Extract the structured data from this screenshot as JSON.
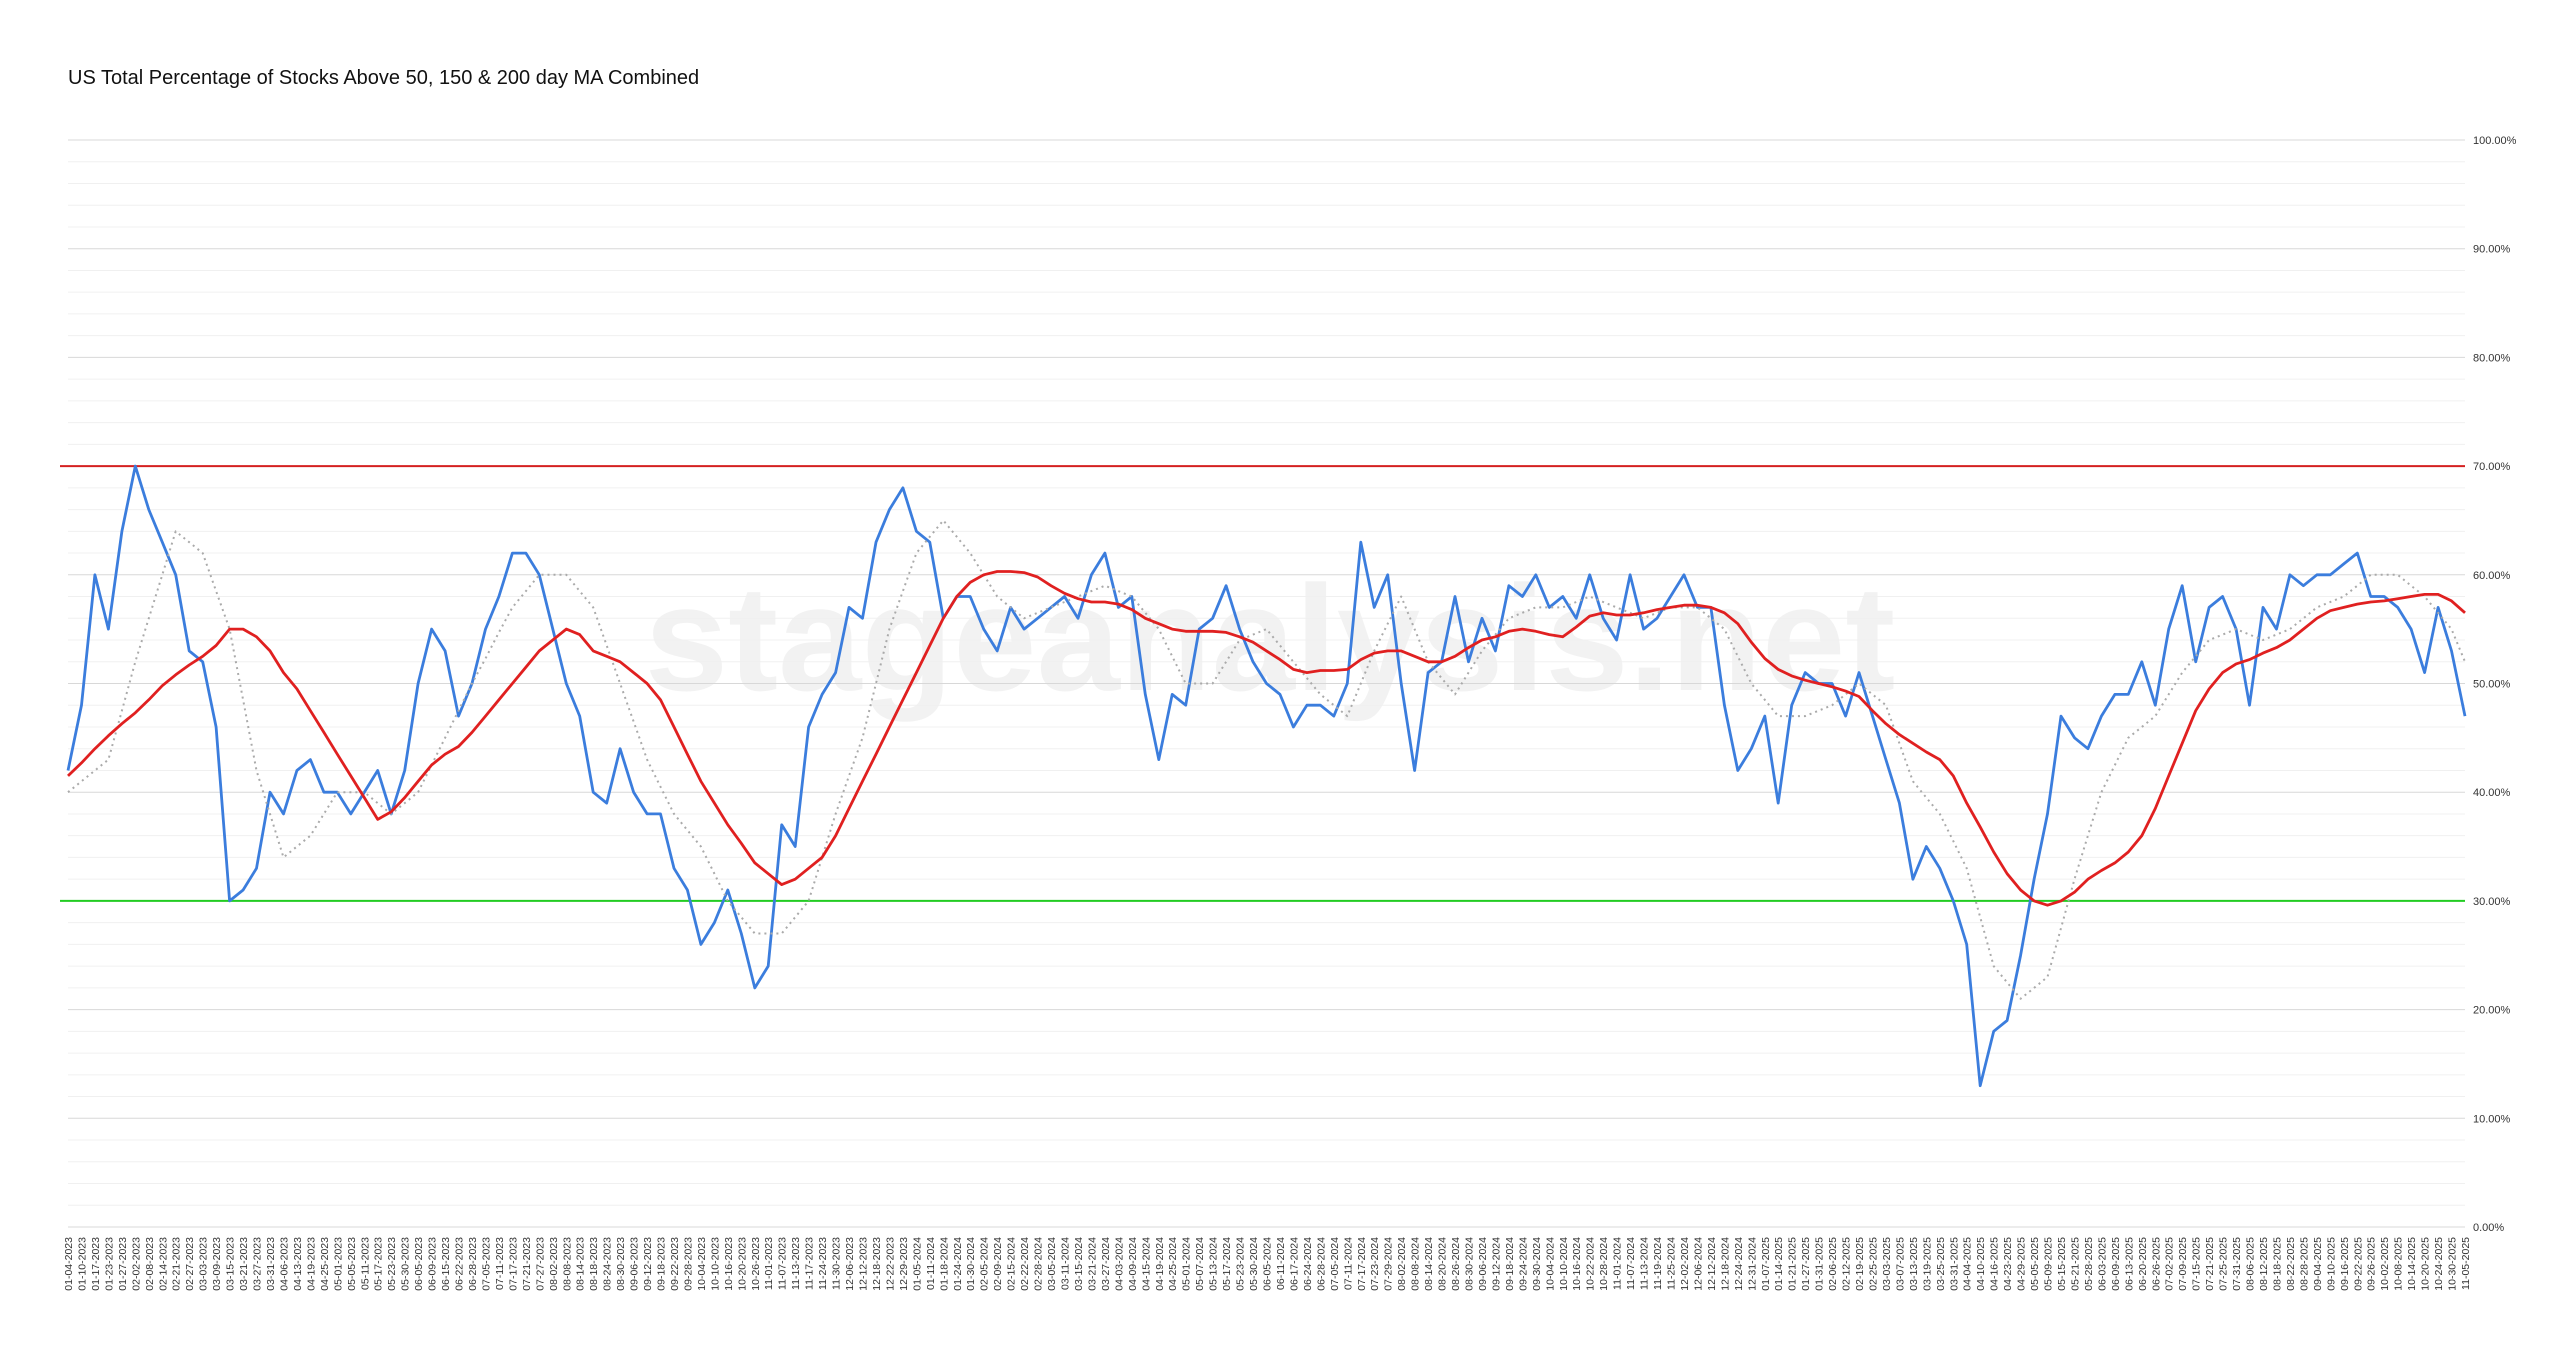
{
  "chart_data": {
    "type": "line",
    "title": "US Total Percentage of Stocks Above 50, 150 & 200 day MA Combined",
    "watermark": "stageanalysis.net",
    "categories": [
      "01-04-2023",
      "01-10-2023",
      "01-17-2023",
      "01-23-2023",
      "01-27-2023",
      "02-02-2023",
      "02-08-2023",
      "02-14-2023",
      "02-21-2023",
      "02-27-2023",
      "03-03-2023",
      "03-09-2023",
      "03-15-2023",
      "03-21-2023",
      "03-27-2023",
      "03-31-2023",
      "04-06-2023",
      "04-13-2023",
      "04-19-2023",
      "04-25-2023",
      "05-01-2023",
      "05-05-2023",
      "05-11-2023",
      "05-17-2023",
      "05-23-2023",
      "05-30-2023",
      "06-05-2023",
      "06-09-2023",
      "06-15-2023",
      "06-22-2023",
      "06-28-2023",
      "07-05-2023",
      "07-11-2023",
      "07-17-2023",
      "07-21-2023",
      "07-27-2023",
      "08-02-2023",
      "08-08-2023",
      "08-14-2023",
      "08-18-2023",
      "08-24-2023",
      "08-30-2023",
      "09-06-2023",
      "09-12-2023",
      "09-18-2023",
      "09-22-2023",
      "09-28-2023",
      "10-04-2023",
      "10-10-2023",
      "10-16-2023",
      "10-20-2023",
      "10-26-2023",
      "11-01-2023",
      "11-07-2023",
      "11-13-2023",
      "11-17-2023",
      "11-24-2023",
      "11-30-2023",
      "12-06-2023",
      "12-12-2023",
      "12-18-2023",
      "12-22-2023",
      "12-29-2023",
      "01-05-2024",
      "01-11-2024",
      "01-18-2024",
      "01-24-2024",
      "01-30-2024",
      "02-05-2024",
      "02-09-2024",
      "02-15-2024",
      "02-22-2024",
      "02-28-2024",
      "03-05-2024",
      "03-11-2024",
      "03-15-2024",
      "03-21-2024",
      "03-27-2024",
      "04-03-2024",
      "04-09-2024",
      "04-15-2024",
      "04-19-2024",
      "04-25-2024",
      "05-01-2024",
      "05-07-2024",
      "05-13-2024",
      "05-17-2024",
      "05-23-2024",
      "05-30-2024",
      "06-05-2024",
      "06-11-2024",
      "06-17-2024",
      "06-24-2024",
      "06-28-2024",
      "07-05-2024",
      "07-11-2024",
      "07-17-2024",
      "07-23-2024",
      "07-29-2024",
      "08-02-2024",
      "08-08-2024",
      "08-14-2024",
      "08-20-2024",
      "08-26-2024",
      "08-30-2024",
      "09-06-2024",
      "09-12-2024",
      "09-18-2024",
      "09-24-2024",
      "09-30-2024",
      "10-04-2024",
      "10-10-2024",
      "10-16-2024",
      "10-22-2024",
      "10-28-2024",
      "11-01-2024",
      "11-07-2024",
      "11-13-2024",
      "11-19-2024",
      "11-25-2024",
      "12-02-2024",
      "12-06-2024",
      "12-12-2024",
      "12-18-2024",
      "12-24-2024",
      "12-31-2024",
      "01-07-2025",
      "01-14-2025",
      "01-21-2025",
      "01-27-2025",
      "01-31-2025",
      "02-06-2025",
      "02-12-2025",
      "02-19-2025",
      "02-25-2025",
      "03-03-2025",
      "03-07-2025",
      "03-13-2025",
      "03-19-2025",
      "03-25-2025",
      "03-31-2025",
      "04-04-2025",
      "04-10-2025",
      "04-16-2025",
      "04-23-2025",
      "04-29-2025",
      "05-05-2025",
      "05-09-2025",
      "05-15-2025",
      "05-21-2025",
      "05-28-2025",
      "06-03-2025",
      "06-09-2025",
      "06-13-2025",
      "06-20-2025",
      "06-26-2025",
      "07-02-2025",
      "07-09-2025",
      "07-15-2025",
      "07-21-2025",
      "07-25-2025",
      "07-31-2025",
      "08-06-2025",
      "08-12-2025",
      "08-18-2025",
      "08-22-2025",
      "08-28-2025",
      "09-04-2025",
      "09-10-2025",
      "09-16-2025",
      "09-22-2025",
      "09-26-2025",
      "10-02-2025",
      "10-08-2025",
      "10-14-2025",
      "10-20-2025",
      "10-24-2025",
      "10-30-2025",
      "11-05-2025"
    ],
    "series": [
      {
        "color": "#3b7ddd",
        "style": "solid",
        "values": [
          42,
          48,
          60,
          55,
          64,
          70,
          66,
          63,
          60,
          53,
          52,
          46,
          30,
          31,
          33,
          40,
          38,
          42,
          43,
          40,
          40,
          38,
          40,
          42,
          38,
          42,
          50,
          55,
          53,
          47,
          50,
          55,
          58,
          62,
          62,
          60,
          55,
          50,
          47,
          40,
          39,
          44,
          40,
          38,
          38,
          33,
          31,
          26,
          28,
          31,
          27,
          22,
          24,
          37,
          35,
          46,
          49,
          51,
          57,
          56,
          63,
          66,
          68,
          64,
          63,
          56,
          58,
          58,
          55,
          53,
          57,
          55,
          56,
          57,
          58,
          56,
          60,
          62,
          57,
          58,
          49,
          43,
          49,
          48,
          55,
          56,
          59,
          55,
          52,
          50,
          49,
          46,
          48,
          48,
          47,
          50,
          63,
          57,
          60,
          50,
          42,
          51,
          52,
          58,
          52,
          56,
          53,
          59,
          58,
          60,
          57,
          58,
          56,
          60,
          56,
          54,
          60,
          55,
          56,
          58,
          60,
          57,
          57,
          48,
          42,
          44,
          47,
          39,
          48,
          51,
          50,
          50,
          47,
          51,
          47,
          43,
          39,
          32,
          35,
          33,
          30,
          26,
          13,
          18,
          19,
          25,
          32,
          38,
          47,
          45,
          44,
          47,
          49,
          49,
          52,
          48,
          55,
          59,
          52,
          57,
          58,
          55,
          48,
          57,
          55,
          60,
          59,
          60,
          60,
          61,
          62,
          58,
          58,
          57,
          55,
          51,
          57,
          53,
          47
        ]
      },
      {
        "color": "#aaaaaa",
        "style": "dotted",
        "values": [
          40,
          41,
          42,
          43,
          47.5,
          52,
          56,
          60,
          64,
          63,
          62,
          58.5,
          55,
          48.5,
          42,
          38,
          34,
          35,
          36,
          38,
          40,
          40,
          40,
          39,
          38,
          39,
          40,
          42.5,
          45,
          47.5,
          50,
          52.3,
          54.7,
          57,
          58.5,
          60,
          60,
          60,
          58.5,
          57,
          53.5,
          50,
          46.5,
          43,
          40.5,
          38,
          36.5,
          35,
          32.5,
          30,
          28.5,
          27,
          27,
          27,
          28.5,
          30,
          34,
          38,
          41.5,
          45,
          50,
          55,
          58.5,
          62,
          63.5,
          65,
          63.5,
          62,
          60,
          58,
          57,
          56,
          56.5,
          57,
          57.5,
          58,
          58.5,
          59,
          58.5,
          58,
          56.5,
          55,
          52.5,
          50,
          50,
          50,
          52,
          54,
          54.5,
          55,
          53.5,
          52,
          50.5,
          49,
          48,
          47,
          50,
          53,
          55.5,
          58,
          55,
          52,
          50.5,
          49,
          51,
          53,
          54.5,
          56,
          56.5,
          57,
          57,
          57,
          57.5,
          58,
          57.5,
          57,
          56.5,
          56,
          56.5,
          57,
          57,
          57,
          56,
          55,
          52.5,
          50,
          48.5,
          47,
          47,
          47,
          47.5,
          48,
          49,
          50,
          49,
          48,
          44.5,
          41,
          39.5,
          38,
          35.5,
          33,
          28.5,
          24,
          22.5,
          21,
          22,
          23,
          27.5,
          32,
          36,
          40,
          42.5,
          45,
          46,
          47,
          49,
          51,
          52.5,
          54,
          54.5,
          55,
          54.5,
          54,
          54.5,
          55,
          56,
          57,
          57.5,
          58,
          59,
          60,
          60,
          60,
          59,
          58,
          56.5,
          55,
          52
        ]
      },
      {
        "color": "#e02020",
        "style": "solid",
        "values": [
          41.5,
          42.7,
          44,
          45.2,
          46.3,
          47.3,
          48.5,
          49.8,
          50.8,
          51.7,
          52.5,
          53.5,
          55,
          55,
          54.3,
          53,
          51,
          49.5,
          47.5,
          45.5,
          43.5,
          41.5,
          39.5,
          37.5,
          38.2,
          39.5,
          41,
          42.5,
          43.5,
          44.2,
          45.5,
          47,
          48.5,
          50,
          51.5,
          53,
          54,
          55,
          54.5,
          53,
          52.5,
          52,
          51,
          50,
          48.5,
          46,
          43.5,
          41,
          39,
          37,
          35.3,
          33.5,
          32.5,
          31.5,
          32,
          33,
          34,
          36,
          38.5,
          41,
          43.5,
          46,
          48.5,
          51,
          53.5,
          56,
          58,
          59.3,
          60,
          60.3,
          60.3,
          60.2,
          59.8,
          59,
          58.3,
          57.8,
          57.5,
          57.5,
          57.3,
          56.8,
          56,
          55.5,
          55,
          54.8,
          54.8,
          54.8,
          54.7,
          54.3,
          53.8,
          53,
          52.2,
          51.3,
          51,
          51.2,
          51.2,
          51.3,
          52.2,
          52.8,
          53,
          53,
          52.5,
          52,
          52,
          52.5,
          53.3,
          54,
          54.3,
          54.8,
          55,
          54.8,
          54.5,
          54.3,
          55.2,
          56.2,
          56.5,
          56.3,
          56.3,
          56.5,
          56.8,
          57,
          57.2,
          57.2,
          57,
          56.5,
          55.5,
          53.8,
          52.3,
          51.3,
          50.7,
          50.3,
          50,
          49.7,
          49.3,
          48.8,
          47.5,
          46.3,
          45.3,
          44.5,
          43.7,
          43,
          41.5,
          39,
          36.8,
          34.5,
          32.5,
          31,
          30,
          29.6,
          30,
          30.8,
          32,
          32.8,
          33.5,
          34.5,
          36,
          38.5,
          41.5,
          44.5,
          47.5,
          49.5,
          51,
          51.8,
          52.2,
          52.8,
          53.3,
          54,
          55,
          56,
          56.7,
          57,
          57.3,
          57.5,
          57.6,
          57.8,
          58,
          58.2,
          58.2,
          57.6,
          56.5
        ]
      }
    ],
    "reference_lines": [
      {
        "value": 70,
        "color": "#d42020"
      },
      {
        "value": 30,
        "color": "#22cc22"
      }
    ],
    "ylim": [
      0,
      100
    ],
    "yticks": [
      {
        "value": 0,
        "label": "0.00%"
      },
      {
        "value": 10,
        "label": "10.00%"
      },
      {
        "value": 20,
        "label": "20.00%"
      },
      {
        "value": 30,
        "label": "30.00%"
      },
      {
        "value": 40,
        "label": "40.00%"
      },
      {
        "value": 50,
        "label": "50.00%"
      },
      {
        "value": 60,
        "label": "60.00%"
      },
      {
        "value": 70,
        "label": "70.00%"
      },
      {
        "value": 80,
        "label": "80.00%"
      },
      {
        "value": 90,
        "label": "90.00%"
      },
      {
        "value": 100,
        "label": "100.00%"
      }
    ],
    "minor_yticks": [
      2,
      4,
      6,
      8,
      12,
      14,
      16,
      18,
      22,
      24,
      26,
      28,
      32,
      34,
      36,
      38,
      42,
      44,
      46,
      48,
      52,
      54,
      56,
      58,
      62,
      64,
      66,
      68,
      72,
      74,
      76,
      78,
      82,
      84,
      86,
      88,
      92,
      94,
      96,
      98
    ],
    "grid": true
  }
}
